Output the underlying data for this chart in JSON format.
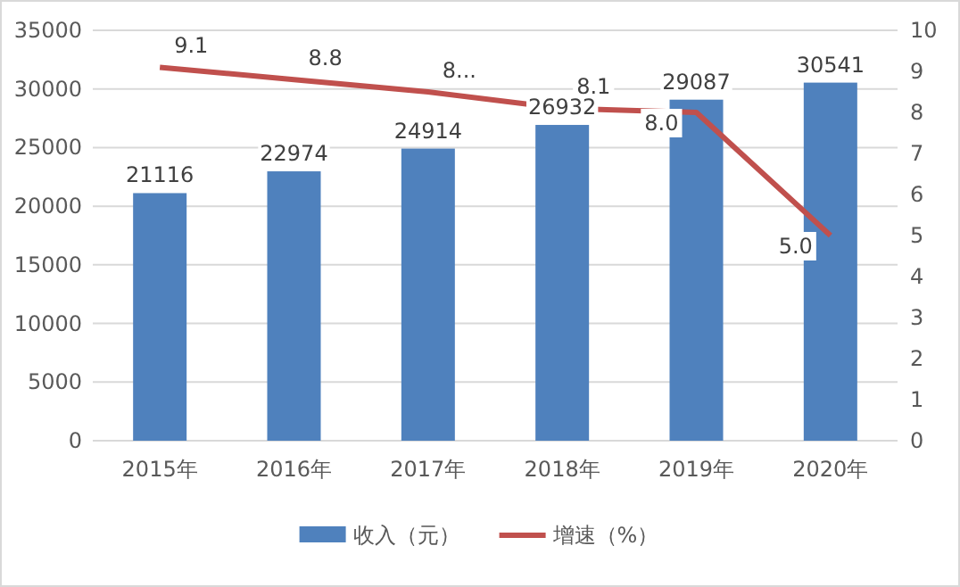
{
  "chart_data": {
    "type": "bar",
    "categories": [
      "2015年",
      "2016年",
      "2017年",
      "2018年",
      "2019年",
      "2020年"
    ],
    "series": [
      {
        "name": "收入（元）",
        "color": "#4f81bd",
        "values": [
          21116,
          22974,
          24914,
          26932,
          29087,
          30541
        ],
        "value_labels": [
          "21116",
          "22974",
          "24914",
          "26932",
          "29087",
          "30541"
        ]
      },
      {
        "name": "增速（%）",
        "type": "line",
        "axis": "y2",
        "color": "#c0504d",
        "values": [
          9.1,
          8.8,
          8.5,
          8.1,
          8.0,
          5.0
        ],
        "value_labels": [
          "9.1",
          "8.8",
          "8...",
          "8.1",
          "8.0",
          "5.0"
        ]
      }
    ],
    "ylim": [
      0,
      35000
    ],
    "yticks": [
      0,
      5000,
      10000,
      15000,
      20000,
      25000,
      30000,
      35000
    ],
    "y2lim": [
      0,
      10
    ],
    "y2ticks": [
      0,
      1,
      2,
      3,
      4,
      5,
      6,
      7,
      8,
      9,
      10
    ],
    "grid": "y",
    "legend": "bottom",
    "marker": "none",
    "line_style": "solid"
  }
}
